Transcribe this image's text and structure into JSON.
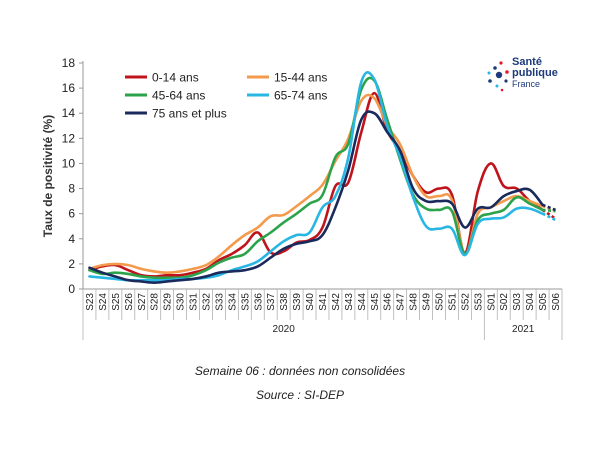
{
  "chart_data": {
    "type": "line",
    "ylabel": "Taux de positivité (%)",
    "ylim": [
      0,
      18
    ],
    "yticks": [
      0,
      2,
      4,
      6,
      8,
      10,
      12,
      14,
      16,
      18
    ],
    "grid": false,
    "legend_position": "top-left",
    "categories": [
      "S23",
      "S24",
      "S25",
      "S26",
      "S27",
      "S28",
      "S29",
      "S30",
      "S31",
      "S32",
      "S33",
      "S34",
      "S35",
      "S36",
      "S37",
      "S38",
      "S39",
      "S40",
      "S41",
      "S42",
      "S43",
      "S44",
      "S45",
      "S46",
      "S47",
      "S48",
      "S49",
      "S50",
      "S51",
      "S52",
      "S53",
      "S01",
      "S02",
      "S03",
      "S04",
      "S05",
      "S06"
    ],
    "year_groups": [
      {
        "label": "2020",
        "start": 0,
        "end": 30
      },
      {
        "label": "2021",
        "start": 31,
        "end": 36
      }
    ],
    "series": [
      {
        "name": "0-14 ans",
        "color": "#c0141c",
        "values": [
          1.5,
          1.8,
          1.9,
          1.5,
          1.1,
          1.0,
          1.1,
          1.1,
          1.3,
          1.6,
          2.3,
          2.8,
          3.5,
          4.5,
          2.9,
          3.0,
          3.7,
          3.9,
          4.9,
          8.2,
          8.5,
          12.5,
          15.6,
          12.6,
          11.0,
          9.0,
          7.7,
          8.0,
          7.5,
          2.9,
          7.8,
          10.0,
          8.2,
          8.0,
          7.0,
          6.3,
          5.6
        ]
      },
      {
        "name": "15-44 ans",
        "color": "#f39a4c",
        "values": [
          1.6,
          1.9,
          2.0,
          1.9,
          1.6,
          1.4,
          1.3,
          1.4,
          1.6,
          1.9,
          2.6,
          3.5,
          4.3,
          4.9,
          5.8,
          5.9,
          6.6,
          7.4,
          8.3,
          10.2,
          12.0,
          15.0,
          15.2,
          13.0,
          11.5,
          9.0,
          7.4,
          7.4,
          7.1,
          2.8,
          6.0,
          6.5,
          7.0,
          7.4,
          7.0,
          6.6,
          6.2
        ]
      },
      {
        "name": "45-64 ans",
        "color": "#2ca34a",
        "values": [
          1.5,
          1.2,
          1.3,
          1.2,
          1.0,
          0.9,
          0.9,
          0.9,
          1.1,
          1.5,
          2.1,
          2.5,
          2.8,
          3.8,
          4.5,
          5.3,
          6.0,
          6.8,
          7.5,
          10.5,
          11.6,
          15.9,
          16.6,
          13.5,
          10.3,
          7.5,
          6.4,
          6.3,
          6.2,
          2.8,
          5.5,
          6.0,
          6.3,
          7.3,
          6.8,
          6.3,
          6.2
        ]
      },
      {
        "name": "65-74 ans",
        "color": "#28b6e3",
        "values": [
          1.0,
          0.9,
          0.8,
          0.7,
          0.7,
          0.7,
          0.7,
          0.8,
          0.8,
          0.9,
          1.1,
          1.5,
          1.8,
          2.2,
          3.0,
          3.8,
          4.3,
          4.5,
          6.5,
          7.4,
          10.5,
          16.5,
          16.7,
          13.0,
          10.5,
          7.3,
          5.0,
          4.8,
          4.8,
          2.7,
          5.2,
          5.6,
          5.7,
          6.4,
          6.4,
          6.0,
          5.5
        ]
      },
      {
        "name": "75 ans et plus",
        "color": "#1a2a5c",
        "values": [
          1.7,
          1.3,
          1.0,
          0.7,
          0.6,
          0.5,
          0.6,
          0.7,
          0.8,
          1.0,
          1.3,
          1.4,
          1.5,
          1.8,
          2.5,
          3.2,
          3.6,
          3.8,
          4.3,
          6.5,
          9.5,
          13.5,
          14.0,
          12.5,
          11.0,
          8.0,
          7.0,
          7.0,
          6.8,
          4.9,
          6.4,
          6.5,
          7.4,
          7.8,
          7.9,
          6.7,
          6.3
        ]
      }
    ]
  },
  "logo": {
    "line1": "Santé",
    "line2": "publique",
    "line3": "France"
  },
  "footnotes": {
    "note": "Semaine 06 : données non consolidées",
    "source": "Source : SI-DEP"
  }
}
